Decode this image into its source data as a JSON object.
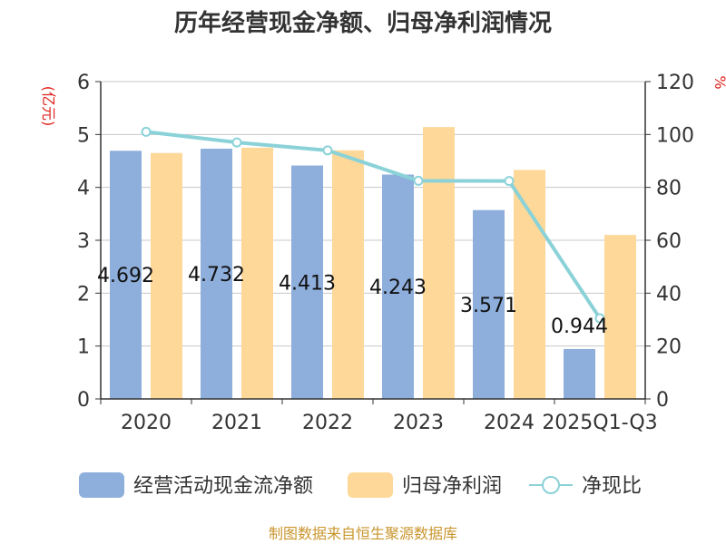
{
  "chart_data": {
    "type": "bar",
    "title": "历年经营现金净额、归母净利润情况",
    "categories": [
      "2020",
      "2021",
      "2022",
      "2023",
      "2024",
      "2025Q1-Q3"
    ],
    "series": [
      {
        "name": "经营活动现金流净额",
        "kind": "bar",
        "axis": "left",
        "color": "#8eaedc",
        "values": [
          4.692,
          4.732,
          4.413,
          4.243,
          3.571,
          0.944
        ]
      },
      {
        "name": "归母净利润",
        "kind": "bar",
        "axis": "left",
        "color": "#fdd899",
        "values": [
          4.65,
          4.75,
          4.7,
          5.14,
          4.33,
          3.1
        ]
      },
      {
        "name": "净现比",
        "kind": "line",
        "axis": "right",
        "color": "#8bd2d8",
        "values": [
          101,
          97,
          94,
          82.5,
          82.4,
          30.5
        ]
      }
    ],
    "data_labels": [
      "4.692",
      "4.732",
      "4.413",
      "4.243",
      "3.571",
      "0.944"
    ],
    "y_left": {
      "unit": "(亿元)",
      "min": 0,
      "max": 6,
      "ticks": [
        "0",
        "1",
        "2",
        "3",
        "4",
        "5",
        "6"
      ]
    },
    "y_right": {
      "unit": "%",
      "min": 0,
      "max": 120,
      "ticks": [
        "0",
        "20",
        "40",
        "60",
        "80",
        "100",
        "120"
      ]
    },
    "grid": true,
    "legend_position": "bottom"
  },
  "footer": {
    "source": "制图数据来自恒生聚源数据库"
  }
}
